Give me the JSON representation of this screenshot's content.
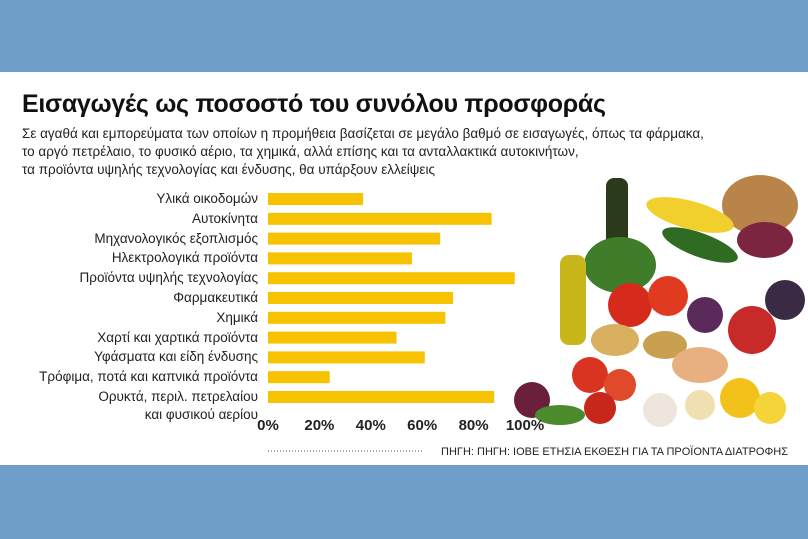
{
  "chart_data": {
    "type": "bar",
    "orientation": "horizontal",
    "title": "Εισαγωγές ως ποσοστό του συνόλου προσφοράς",
    "subtitle": [
      "Σε αγαθά και εμπορεύματα των οποίων η προμήθεια βασίζεται σε μεγάλο βαθμό σε εισαγωγές, όπως τα φάρμακα,",
      "το αργό πετρέλαιο, το φυσικό αέριο, τα χημικά, αλλά επίσης και τα ανταλλακτικά αυτοκινήτων,",
      "τα προϊόντα υψηλής τεχνολογίας και ένδυσης, θα υπάρξουν ελλείψεις"
    ],
    "categories": [
      "Υλικά οικοδομών",
      "Αυτοκίνητα",
      "Μηχανολογικός εξοπλισμός",
      "Ηλεκτρολογικά προϊόντα",
      "Προϊόντα υψηλής τεχνολογίας",
      "Φαρμακευτικά",
      "Χημικά",
      "Χαρτί και χαρτικά προϊόντα",
      "Υφάσματα και είδη ένδυσης",
      "Τρόφιμα, ποτά και καπνικά προϊόντα",
      "Ορυκτά, περιλ. πετρελαίου\nκαι φυσικού αερίου"
    ],
    "values": [
      37,
      87,
      67,
      56,
      96,
      72,
      69,
      50,
      61,
      24,
      88
    ],
    "color": "#f7c200",
    "xlim": [
      0,
      100
    ],
    "xticks": [
      {
        "value": 0,
        "label": "0%"
      },
      {
        "value": 20,
        "label": "20%"
      },
      {
        "value": 40,
        "label": "40%"
      },
      {
        "value": 60,
        "label": "60%"
      },
      {
        "value": 80,
        "label": "80%"
      },
      {
        "value": 100,
        "label": "100%"
      }
    ],
    "source": "ΠΗΓΗ: ΠΗΓΗ: ΙΟΒΕ ΕΤΗΣΙΑ ΕΚΘΕΣΗ ΓΙΑ ΤΑ ΠΡΟΪΟΝΤΑ ΔΙΑΤΡΟΦΗΣ"
  }
}
